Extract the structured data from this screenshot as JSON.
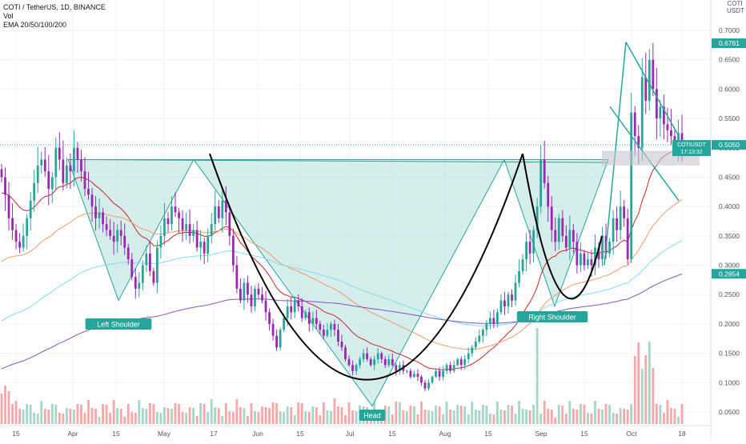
{
  "header": {
    "symbol_line": "COTI / TetherUS, 1D, BINANCE",
    "volume_label": "Vol",
    "ema_label": "EMA 20/50/100/200"
  },
  "scale_button": {
    "line1": "COTI",
    "line2": "USDT"
  },
  "colors": {
    "bull": "#26a69a",
    "bull_highlight": "#9c27b0",
    "bear": "#9c27b0",
    "volume_up": "#a5d6c8",
    "volume_down": "#f7a7a7",
    "pattern_fill": "#b2dfdb",
    "pattern_stroke": "#26a69a",
    "ema20": "#c62828",
    "ema50": "#ef9a6a",
    "ema100": "#80deea",
    "ema200": "#7e57c2",
    "price_label_bg": "#26a69a",
    "grid": "#f0f3fa"
  },
  "chart_data": {
    "type": "candlestick",
    "price_axis": {
      "ticks": [
        "0.7000",
        "0.6500",
        "0.6000",
        "0.5500",
        "0.5000",
        "0.4500",
        "0.4000",
        "0.3500",
        "0.3000",
        "0.2500",
        "0.2000",
        "0.1500",
        "0.1000",
        "0.0500"
      ],
      "ylim": [
        0.03,
        0.73
      ],
      "labels": [
        {
          "text": "0.6781",
          "value": 0.6781
        },
        {
          "text": "COTIUSDT",
          "value": 0.505,
          "secondary": "17:13:32"
        },
        {
          "text": "0.5050",
          "value": 0.505
        },
        {
          "text": "0.2854",
          "value": 0.2854
        }
      ]
    },
    "time_axis": {
      "ticks": [
        "15",
        "Apr",
        "15",
        "May",
        "17",
        "Jun",
        "15",
        "Jul",
        "15",
        "Aug",
        "15",
        "Sep",
        "15",
        "Oct",
        "18"
      ]
    },
    "annotations": [
      "Left Shoulder",
      "Head",
      "Right Shoulder"
    ],
    "closes": [
      0.45,
      0.42,
      0.38,
      0.36,
      0.34,
      0.33,
      0.35,
      0.38,
      0.41,
      0.44,
      0.47,
      0.48,
      0.46,
      0.43,
      0.45,
      0.5,
      0.48,
      0.44,
      0.47,
      0.46,
      0.5,
      0.48,
      0.46,
      0.43,
      0.42,
      0.4,
      0.38,
      0.39,
      0.37,
      0.36,
      0.35,
      0.34,
      0.36,
      0.35,
      0.33,
      0.31,
      0.28,
      0.26,
      0.27,
      0.3,
      0.32,
      0.29,
      0.27,
      0.33,
      0.35,
      0.38,
      0.37,
      0.4,
      0.39,
      0.38,
      0.36,
      0.37,
      0.35,
      0.36,
      0.33,
      0.34,
      0.32,
      0.35,
      0.37,
      0.4,
      0.38,
      0.41,
      0.39,
      0.35,
      0.3,
      0.26,
      0.24,
      0.27,
      0.25,
      0.23,
      0.26,
      0.25,
      0.24,
      0.22,
      0.2,
      0.18,
      0.16,
      0.19,
      0.21,
      0.23,
      0.22,
      0.24,
      0.23,
      0.21,
      0.22,
      0.2,
      0.21,
      0.2,
      0.19,
      0.18,
      0.19,
      0.2,
      0.19,
      0.17,
      0.16,
      0.14,
      0.13,
      0.12,
      0.13,
      0.14,
      0.15,
      0.14,
      0.13,
      0.14,
      0.15,
      0.14,
      0.13,
      0.14,
      0.13,
      0.12,
      0.13,
      0.12,
      0.12,
      0.11,
      0.115,
      0.11,
      0.1,
      0.09,
      0.1,
      0.11,
      0.12,
      0.11,
      0.12,
      0.13,
      0.12,
      0.13,
      0.14,
      0.13,
      0.14,
      0.15,
      0.16,
      0.17,
      0.18,
      0.19,
      0.2,
      0.21,
      0.2,
      0.22,
      0.24,
      0.23,
      0.25,
      0.24,
      0.27,
      0.29,
      0.31,
      0.34,
      0.32,
      0.36,
      0.4,
      0.48,
      0.44,
      0.4,
      0.36,
      0.34,
      0.38,
      0.35,
      0.33,
      0.36,
      0.34,
      0.3,
      0.32,
      0.3,
      0.31,
      0.3,
      0.33,
      0.31,
      0.35,
      0.32,
      0.34,
      0.38,
      0.36,
      0.4,
      0.38,
      0.31,
      0.56,
      0.52,
      0.5,
      0.62,
      0.58,
      0.65,
      0.6,
      0.55,
      0.57,
      0.54,
      0.53,
      0.52,
      0.51,
      0.525,
      0.505
    ]
  }
}
